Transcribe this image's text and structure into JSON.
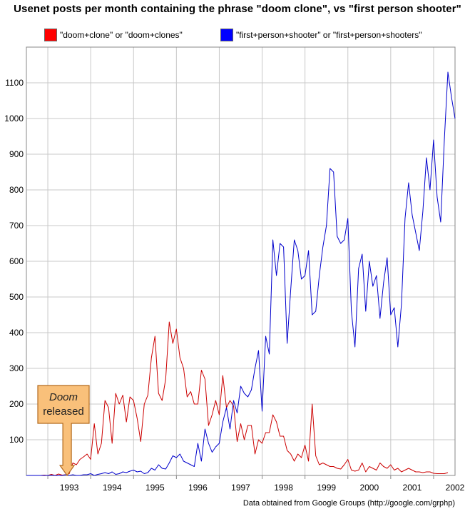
{
  "chart_data": {
    "type": "line",
    "title": "Usenet posts per month containing the phrase \"doom clone\", vs \"first person shooter\"",
    "xlabel": "",
    "ylabel": "",
    "xlim": [
      1992.5,
      2002.5
    ],
    "ylim": [
      0,
      1200
    ],
    "x_ticks": [
      1993,
      1994,
      1995,
      1996,
      1997,
      1998,
      1999,
      2000,
      2001,
      2002
    ],
    "y_ticks": [
      100,
      200,
      300,
      400,
      500,
      600,
      700,
      800,
      900,
      1000,
      1100
    ],
    "grid": true,
    "legend_position": "top",
    "series": [
      {
        "name": "\"doom+clone\" or \"doom+clones\"",
        "color": "#cc0000",
        "x_start": 1992.5,
        "x_step": 0.08333,
        "values": [
          0,
          0,
          0,
          0,
          0,
          1,
          0,
          3,
          0,
          4,
          1,
          2,
          5,
          35,
          30,
          45,
          52,
          60,
          45,
          145,
          60,
          90,
          210,
          190,
          90,
          230,
          200,
          225,
          150,
          220,
          210,
          160,
          95,
          200,
          225,
          330,
          390,
          230,
          210,
          270,
          430,
          370,
          410,
          330,
          300,
          220,
          235,
          200,
          200,
          295,
          270,
          140,
          170,
          210,
          170,
          280,
          190,
          210,
          195,
          95,
          145,
          100,
          140,
          140,
          60,
          100,
          90,
          120,
          120,
          170,
          150,
          110,
          110,
          70,
          60,
          40,
          60,
          50,
          85,
          40,
          200,
          55,
          30,
          35,
          30,
          25,
          25,
          20,
          18,
          30,
          45,
          15,
          12,
          15,
          35,
          10,
          25,
          20,
          15,
          35,
          25,
          20,
          30,
          15,
          20,
          10,
          15,
          20,
          15,
          10,
          10,
          8,
          10,
          10,
          6,
          5,
          5,
          5,
          8
        ]
      },
      {
        "name": "\"first+person+shooter\" or \"first+person+shooters\"",
        "color": "#0000cc",
        "x_start": 1992.5,
        "x_step": 0.08333,
        "values": [
          0,
          0,
          0,
          0,
          0,
          0,
          0,
          1,
          0,
          0,
          0,
          2,
          0,
          2,
          0,
          0,
          2,
          2,
          5,
          0,
          3,
          5,
          8,
          5,
          10,
          3,
          5,
          10,
          8,
          12,
          15,
          10,
          12,
          5,
          8,
          20,
          15,
          30,
          20,
          18,
          35,
          55,
          50,
          60,
          40,
          35,
          30,
          25,
          90,
          40,
          130,
          90,
          65,
          80,
          90,
          150,
          190,
          130,
          210,
          175,
          250,
          230,
          220,
          240,
          300,
          350,
          180,
          390,
          340,
          660,
          560,
          650,
          640,
          370,
          520,
          660,
          630,
          550,
          560,
          630,
          450,
          460,
          560,
          640,
          700,
          860,
          850,
          670,
          650,
          660,
          720,
          460,
          360,
          580,
          620,
          460,
          600,
          530,
          560,
          440,
          540,
          610,
          450,
          470,
          360,
          480,
          720,
          820,
          730,
          680,
          630,
          740,
          890,
          800,
          940,
          780,
          710,
          940,
          1130,
          1060,
          1000
        ]
      }
    ],
    "annotations": [
      {
        "text_line1": "Doom",
        "text_line2": "released",
        "x": 1993.45,
        "y": 0
      }
    ]
  },
  "legend": {
    "items": [
      {
        "label": "\"doom+clone\" or \"doom+clones\"",
        "color": "#ff0000"
      },
      {
        "label": "\"first+person+shooter\" or \"first+person+shooters\"",
        "color": "#0000ff"
      }
    ]
  },
  "footer": "Data obtained from Google Groups (http://google.com/grphp)"
}
